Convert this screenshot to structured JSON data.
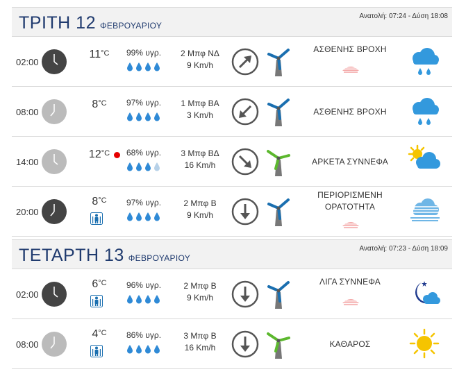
{
  "days": [
    {
      "name": "ΤΡΙΤΗ 12",
      "month": "ΦΕΒΡΟΥΑΡΙΟΥ",
      "sun": "Ανατολή: 07:24 - Δύση 18:08",
      "rows": [
        {
          "time": "02:00",
          "temp": "11",
          "unit": "°C",
          "humidity": "99% υγρ.",
          "wind_beaufort": "2 Μπφ ΝΔ",
          "wind_speed": "9 Km/h",
          "condition": "ΑΣΘΕΝΗΣ ΒΡΟΧΗ"
        },
        {
          "time": "08:00",
          "temp": "8",
          "unit": "°C",
          "humidity": "97% υγρ.",
          "wind_beaufort": "1 Μπφ ΒΑ",
          "wind_speed": "3 Km/h",
          "condition": "ΑΣΘΕΝΗΣ ΒΡΟΧΗ"
        },
        {
          "time": "14:00",
          "temp": "12",
          "unit": "°C",
          "humidity": "68% υγρ.",
          "wind_beaufort": "3 Μπφ ΒΔ",
          "wind_speed": "16 Km/h",
          "condition": "ΑΡΚΕΤΑ ΣΥΝΝΕΦΑ"
        },
        {
          "time": "20:00",
          "temp": "8",
          "unit": "°C",
          "humidity": "97% υγρ.",
          "wind_beaufort": "2 Μπφ Β",
          "wind_speed": "9 Km/h",
          "condition_line1": "ΠΕΡΙΟΡΙΣΜΕΝΗ",
          "condition_line2": "ΟΡΑΤΟΤΗΤΑ"
        }
      ]
    },
    {
      "name": "ΤΕΤΑΡΤΗ 13",
      "month": "ΦΕΒΡΟΥΑΡΙΟΥ",
      "sun": "Ανατολή: 07:23 - Δύση 18:09",
      "rows": [
        {
          "time": "02:00",
          "temp": "6",
          "unit": "°C",
          "humidity": "96% υγρ.",
          "wind_beaufort": "2 Μπφ Β",
          "wind_speed": "9 Km/h",
          "condition": "ΛΙΓΑ ΣΥΝΝΕΦΑ"
        },
        {
          "time": "08:00",
          "temp": "4",
          "unit": "°C",
          "humidity": "86% υγρ.",
          "wind_beaufort": "3 Μπφ Β",
          "wind_speed": "16 Km/h",
          "condition": "ΚΑΘΑΡΟΣ"
        }
      ]
    }
  ],
  "colors": {
    "header_text": "#1f3a6e",
    "drop": "#2f8ad6",
    "drop_light": "#b7d1e8",
    "arrow": "#555555",
    "turbine_blue": "#1a6fb0",
    "turbine_green": "#5cb82e",
    "alert_red": "#e60000"
  }
}
